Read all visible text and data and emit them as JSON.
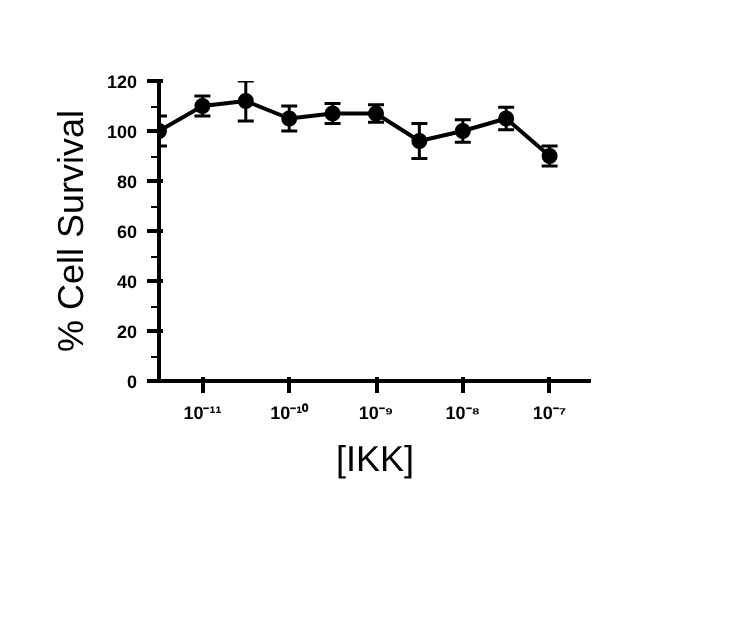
{
  "chart_data": {
    "type": "line",
    "xlabel": "[IKK]",
    "ylabel": "% Cell Survival",
    "log": "x",
    "marker": "circle",
    "line_style": "solid",
    "grid": false,
    "x": [
      3.16e-12,
      1e-11,
      3.16e-11,
      1e-10,
      3.16e-10,
      1e-09,
      3.16e-09,
      1e-08,
      3.16e-08,
      1e-07
    ],
    "series": [
      {
        "color": "#000000",
        "values": [
          100,
          110,
          112,
          105,
          107,
          107,
          96,
          100,
          105,
          90
        ],
        "errors": [
          6,
          4,
          8,
          5,
          4,
          3.5,
          7,
          4.5,
          4.5,
          4
        ]
      }
    ],
    "xlim": [
      3.16e-12,
      3e-07
    ],
    "ylim": [
      0,
      120
    ],
    "xticks": [
      {
        "value": 1e-11,
        "label": "10⁻¹¹"
      },
      {
        "value": 1e-10,
        "label": "10⁻¹⁰"
      },
      {
        "value": 1e-09,
        "label": "10⁻⁹"
      },
      {
        "value": 1e-08,
        "label": "10⁻⁸"
      },
      {
        "value": 1e-07,
        "label": "10⁻⁷"
      }
    ],
    "yticks": [
      0,
      20,
      40,
      60,
      80,
      100,
      120
    ]
  }
}
